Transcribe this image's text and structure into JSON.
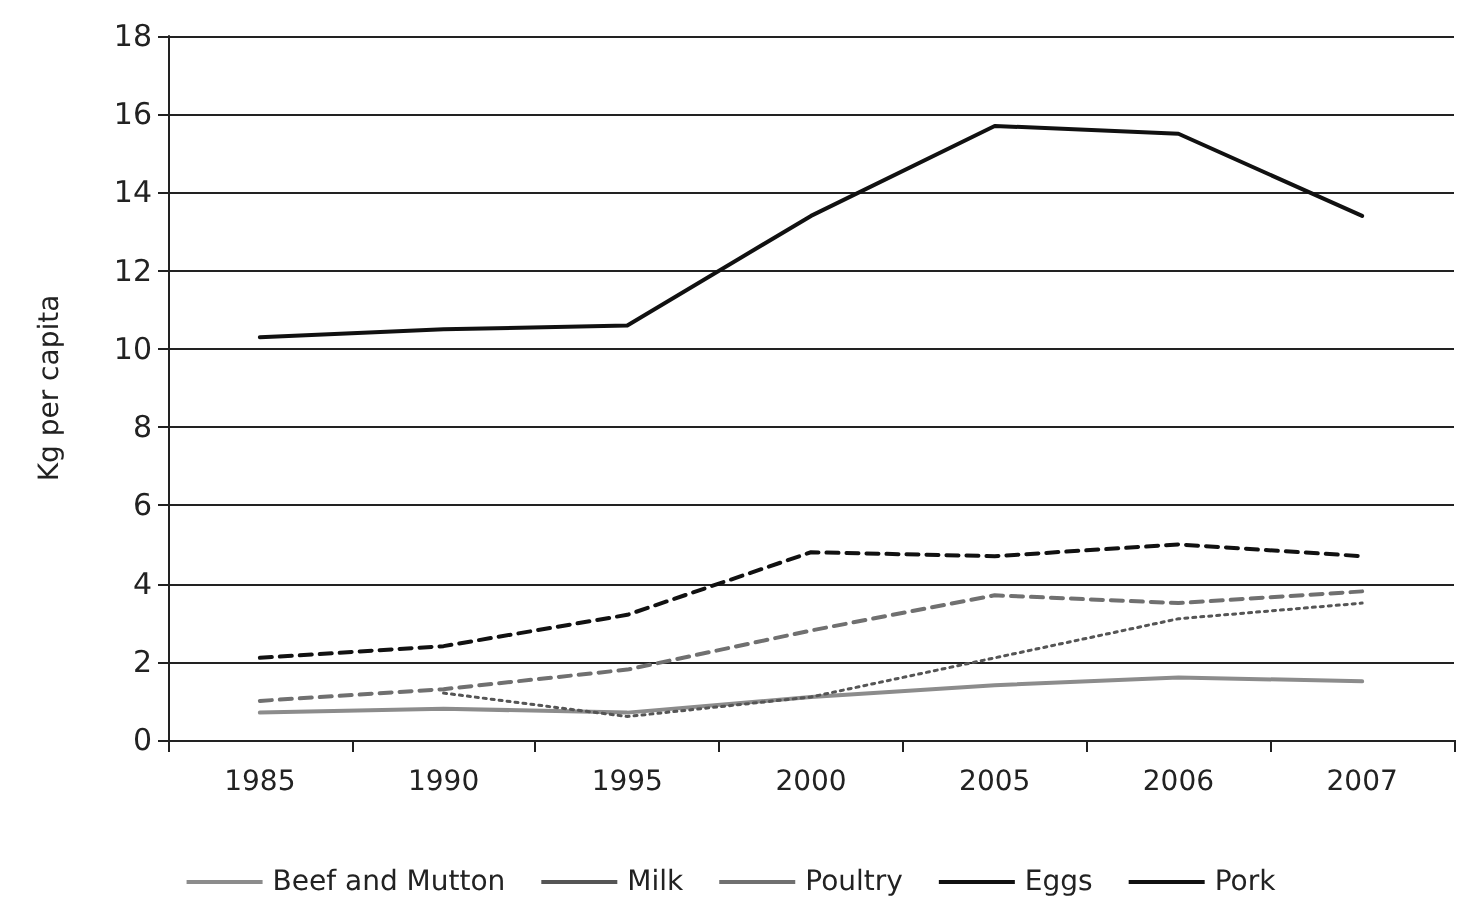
{
  "chart_data": {
    "type": "line",
    "ylabel": "Kg per capita",
    "categories": [
      "1985",
      "1990",
      "1995",
      "2000",
      "2005",
      "2006",
      "2007"
    ],
    "series": [
      {
        "name": "Beef and Mutton",
        "color": "#8c8c8c",
        "line_style": "solid",
        "values": [
          0.7,
          0.8,
          0.7,
          1.1,
          1.4,
          1.6,
          1.5
        ]
      },
      {
        "name": "Milk",
        "color": "#555555",
        "line_style": "dotted",
        "values": [
          null,
          1.2,
          0.6,
          1.1,
          2.1,
          3.1,
          3.5
        ]
      },
      {
        "name": "Poultry",
        "color": "#707070",
        "line_style": "dashed",
        "values": [
          1.0,
          1.3,
          1.8,
          2.8,
          3.7,
          3.5,
          3.8
        ]
      },
      {
        "name": "Eggs",
        "color": "#111111",
        "line_style": "dashed",
        "values": [
          2.1,
          2.4,
          3.2,
          4.8,
          4.7,
          5.0,
          4.7
        ]
      },
      {
        "name": "Pork",
        "color": "#111111",
        "line_style": "solid",
        "values": [
          10.3,
          10.5,
          10.6,
          13.4,
          15.7,
          15.5,
          13.4
        ]
      }
    ],
    "ylim": [
      0,
      18
    ],
    "yticks": [
      0,
      2,
      4,
      6,
      8,
      10,
      12,
      14,
      16,
      18
    ],
    "grid": "y",
    "legend": "bottom",
    "marker": "none"
  }
}
